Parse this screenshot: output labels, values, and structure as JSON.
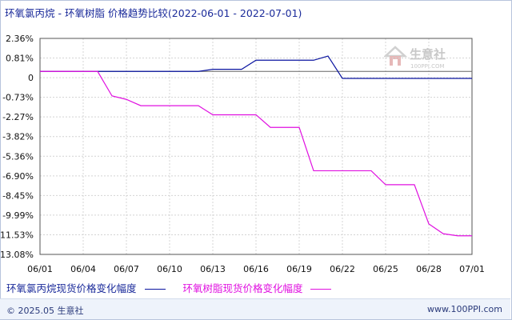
{
  "header": {
    "title": "环氧氯丙烷 - 环氧树脂 价格趋势比较(2022-06-01 - 2022-07-01)"
  },
  "watermark": {
    "icon": "house-logo-icon",
    "text": "生意社",
    "sub": "100PPI.COM"
  },
  "footer": {
    "copyright": "© 2025.05 生意社",
    "site": "www.100PPI.com"
  },
  "chart_data": {
    "type": "line",
    "title": "环氧氯丙烷 - 环氧树脂 价格趋势比较(2022-06-01 - 2022-07-01)",
    "xlabel": "",
    "ylabel": "",
    "x_range": [
      "2022-06-01",
      "2022-07-01"
    ],
    "x_ticks": [
      "06/01",
      "06/04",
      "06/07",
      "06/10",
      "06/13",
      "06/16",
      "06/19",
      "06/22",
      "06/25",
      "06/28",
      "07/01"
    ],
    "y_ticks": [
      "2.36%",
      "0.81%",
      "0",
      "-0.73%",
      "-2.27%",
      "-3.82%",
      "-5.36%",
      "-6.90%",
      "-8.45%",
      "-9.99%",
      "-11.53%",
      "-13.08%"
    ],
    "ylim": [
      -13.08,
      2.36
    ],
    "grid": true,
    "legend_position": "bottom",
    "series": [
      {
        "name": "环氧氯丙烷现货价格变化幅度",
        "color": "#0a14a0",
        "points": [
          [
            "2022-06-01",
            0
          ],
          [
            "2022-06-12",
            0
          ],
          [
            "2022-06-13",
            0.15
          ],
          [
            "2022-06-15",
            0.15
          ],
          [
            "2022-06-16",
            0.8
          ],
          [
            "2022-06-20",
            0.8
          ],
          [
            "2022-06-21",
            1.1
          ],
          [
            "2022-06-22",
            -0.5
          ],
          [
            "2022-07-01",
            -0.5
          ]
        ]
      },
      {
        "name": "环氧树脂现货价格变化幅度",
        "color": "#e010e0",
        "points": [
          [
            "2022-06-01",
            0
          ],
          [
            "2022-06-05",
            0
          ],
          [
            "2022-06-06",
            -1.75
          ],
          [
            "2022-06-07",
            -2.0
          ],
          [
            "2022-06-08",
            -2.45
          ],
          [
            "2022-06-12",
            -2.45
          ],
          [
            "2022-06-13",
            -3.1
          ],
          [
            "2022-06-16",
            -3.1
          ],
          [
            "2022-06-17",
            -4.0
          ],
          [
            "2022-06-19",
            -4.0
          ],
          [
            "2022-06-20",
            -7.1
          ],
          [
            "2022-06-24",
            -7.1
          ],
          [
            "2022-06-25",
            -8.1
          ],
          [
            "2022-06-27",
            -8.1
          ],
          [
            "2022-06-28",
            -10.9
          ],
          [
            "2022-06-29",
            -11.6
          ],
          [
            "2022-06-30",
            -11.75
          ],
          [
            "2022-07-01",
            -11.75
          ]
        ]
      }
    ]
  }
}
